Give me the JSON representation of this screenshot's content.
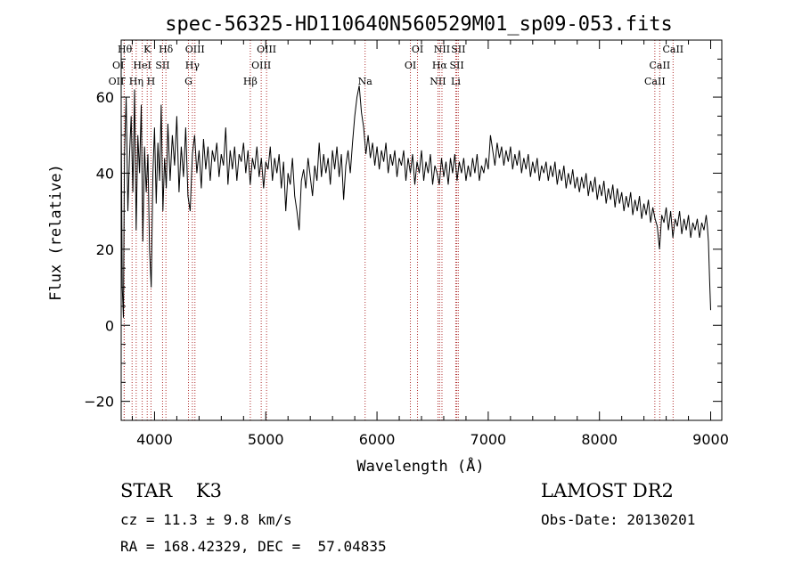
{
  "chart_data": {
    "type": "line",
    "title": "spec-56325-HD110640N560529M01_sp09-053.fits",
    "xlabel": "Wavelength (Å)",
    "ylabel": "Flux (relative)",
    "xlim": [
      3700,
      9100
    ],
    "ylim": [
      -25,
      75
    ],
    "x_ticks": [
      4000,
      5000,
      6000,
      7000,
      8000,
      9000
    ],
    "y_ticks": [
      -20,
      0,
      20,
      40,
      60
    ],
    "grid": false,
    "series": [
      {
        "color": "#000000",
        "points": [
          [
            3700,
            55
          ],
          [
            3710,
            10
          ],
          [
            3720,
            2
          ],
          [
            3730,
            45
          ],
          [
            3745,
            60
          ],
          [
            3760,
            30
          ],
          [
            3775,
            45
          ],
          [
            3790,
            55
          ],
          [
            3805,
            35
          ],
          [
            3820,
            62
          ],
          [
            3835,
            25
          ],
          [
            3850,
            50
          ],
          [
            3865,
            40
          ],
          [
            3880,
            58
          ],
          [
            3895,
            22
          ],
          [
            3910,
            47
          ],
          [
            3925,
            35
          ],
          [
            3940,
            45
          ],
          [
            3955,
            20
          ],
          [
            3970,
            10
          ],
          [
            3985,
            40
          ],
          [
            4000,
            52
          ],
          [
            4015,
            32
          ],
          [
            4030,
            48
          ],
          [
            4045,
            38
          ],
          [
            4060,
            58
          ],
          [
            4075,
            30
          ],
          [
            4090,
            44
          ],
          [
            4105,
            36
          ],
          [
            4120,
            53
          ],
          [
            4140,
            38
          ],
          [
            4160,
            50
          ],
          [
            4180,
            42
          ],
          [
            4200,
            55
          ],
          [
            4220,
            35
          ],
          [
            4240,
            47
          ],
          [
            4260,
            39
          ],
          [
            4280,
            52
          ],
          [
            4300,
            34
          ],
          [
            4320,
            30
          ],
          [
            4340,
            45
          ],
          [
            4360,
            50
          ],
          [
            4380,
            40
          ],
          [
            4400,
            46
          ],
          [
            4420,
            36
          ],
          [
            4440,
            49
          ],
          [
            4460,
            41
          ],
          [
            4480,
            47
          ],
          [
            4500,
            38
          ],
          [
            4520,
            46
          ],
          [
            4540,
            43
          ],
          [
            4560,
            48
          ],
          [
            4580,
            39
          ],
          [
            4600,
            45
          ],
          [
            4620,
            42
          ],
          [
            4640,
            52
          ],
          [
            4660,
            37
          ],
          [
            4680,
            46
          ],
          [
            4700,
            41
          ],
          [
            4720,
            47
          ],
          [
            4740,
            38
          ],
          [
            4760,
            45
          ],
          [
            4780,
            43
          ],
          [
            4800,
            48
          ],
          [
            4820,
            40
          ],
          [
            4840,
            46
          ],
          [
            4860,
            37
          ],
          [
            4880,
            44
          ],
          [
            4900,
            41
          ],
          [
            4920,
            47
          ],
          [
            4940,
            39
          ],
          [
            4960,
            44
          ],
          [
            4980,
            36
          ],
          [
            5000,
            43
          ],
          [
            5020,
            41
          ],
          [
            5040,
            47
          ],
          [
            5060,
            38
          ],
          [
            5080,
            44
          ],
          [
            5100,
            40
          ],
          [
            5120,
            45
          ],
          [
            5140,
            36
          ],
          [
            5160,
            43
          ],
          [
            5180,
            30
          ],
          [
            5200,
            40
          ],
          [
            5220,
            37
          ],
          [
            5240,
            44
          ],
          [
            5260,
            34
          ],
          [
            5280,
            30
          ],
          [
            5300,
            25
          ],
          [
            5320,
            38
          ],
          [
            5340,
            41
          ],
          [
            5360,
            36
          ],
          [
            5380,
            44
          ],
          [
            5400,
            39
          ],
          [
            5420,
            34
          ],
          [
            5440,
            42
          ],
          [
            5460,
            38
          ],
          [
            5480,
            48
          ],
          [
            5500,
            39
          ],
          [
            5520,
            45
          ],
          [
            5540,
            40
          ],
          [
            5560,
            44
          ],
          [
            5580,
            37
          ],
          [
            5600,
            46
          ],
          [
            5620,
            41
          ],
          [
            5640,
            47
          ],
          [
            5660,
            39
          ],
          [
            5680,
            45
          ],
          [
            5700,
            33
          ],
          [
            5720,
            42
          ],
          [
            5740,
            46
          ],
          [
            5760,
            40
          ],
          [
            5780,
            48
          ],
          [
            5800,
            55
          ],
          [
            5820,
            60
          ],
          [
            5840,
            63
          ],
          [
            5860,
            56
          ],
          [
            5880,
            52
          ],
          [
            5900,
            45
          ],
          [
            5920,
            50
          ],
          [
            5940,
            44
          ],
          [
            5960,
            48
          ],
          [
            5980,
            42
          ],
          [
            6000,
            47
          ],
          [
            6020,
            41
          ],
          [
            6040,
            46
          ],
          [
            6060,
            43
          ],
          [
            6080,
            48
          ],
          [
            6100,
            40
          ],
          [
            6120,
            45
          ],
          [
            6140,
            42
          ],
          [
            6160,
            46
          ],
          [
            6180,
            39
          ],
          [
            6200,
            44
          ],
          [
            6220,
            42
          ],
          [
            6240,
            46
          ],
          [
            6260,
            38
          ],
          [
            6280,
            44
          ],
          [
            6300,
            40
          ],
          [
            6320,
            45
          ],
          [
            6340,
            37
          ],
          [
            6360,
            43
          ],
          [
            6380,
            40
          ],
          [
            6400,
            46
          ],
          [
            6420,
            38
          ],
          [
            6440,
            43
          ],
          [
            6460,
            40
          ],
          [
            6480,
            45
          ],
          [
            6500,
            37
          ],
          [
            6520,
            42
          ],
          [
            6540,
            40
          ],
          [
            6560,
            37
          ],
          [
            6580,
            44
          ],
          [
            6600,
            39
          ],
          [
            6620,
            43
          ],
          [
            6640,
            37
          ],
          [
            6660,
            44
          ],
          [
            6680,
            40
          ],
          [
            6700,
            45
          ],
          [
            6720,
            38
          ],
          [
            6740,
            43
          ],
          [
            6760,
            40
          ],
          [
            6780,
            44
          ],
          [
            6800,
            38
          ],
          [
            6820,
            42
          ],
          [
            6840,
            39
          ],
          [
            6860,
            44
          ],
          [
            6880,
            40
          ],
          [
            6900,
            45
          ],
          [
            6920,
            38
          ],
          [
            6940,
            42
          ],
          [
            6960,
            40
          ],
          [
            6980,
            44
          ],
          [
            7000,
            41
          ],
          [
            7020,
            50
          ],
          [
            7040,
            46
          ],
          [
            7060,
            42
          ],
          [
            7080,
            48
          ],
          [
            7100,
            44
          ],
          [
            7120,
            47
          ],
          [
            7140,
            42
          ],
          [
            7160,
            46
          ],
          [
            7180,
            43
          ],
          [
            7200,
            47
          ],
          [
            7220,
            41
          ],
          [
            7240,
            45
          ],
          [
            7260,
            42
          ],
          [
            7280,
            46
          ],
          [
            7300,
            40
          ],
          [
            7320,
            44
          ],
          [
            7340,
            41
          ],
          [
            7360,
            45
          ],
          [
            7380,
            39
          ],
          [
            7400,
            43
          ],
          [
            7420,
            40
          ],
          [
            7440,
            44
          ],
          [
            7460,
            38
          ],
          [
            7480,
            42
          ],
          [
            7500,
            40
          ],
          [
            7520,
            43
          ],
          [
            7540,
            38
          ],
          [
            7560,
            42
          ],
          [
            7580,
            39
          ],
          [
            7600,
            43
          ],
          [
            7620,
            37
          ],
          [
            7640,
            41
          ],
          [
            7660,
            38
          ],
          [
            7680,
            42
          ],
          [
            7700,
            36
          ],
          [
            7720,
            40
          ],
          [
            7740,
            37
          ],
          [
            7760,
            41
          ],
          [
            7780,
            36
          ],
          [
            7800,
            39
          ],
          [
            7820,
            35
          ],
          [
            7840,
            39
          ],
          [
            7860,
            36
          ],
          [
            7880,
            40
          ],
          [
            7900,
            34
          ],
          [
            7920,
            38
          ],
          [
            7940,
            35
          ],
          [
            7960,
            39
          ],
          [
            7980,
            33
          ],
          [
            8000,
            37
          ],
          [
            8020,
            34
          ],
          [
            8040,
            38
          ],
          [
            8060,
            32
          ],
          [
            8080,
            36
          ],
          [
            8100,
            33
          ],
          [
            8120,
            37
          ],
          [
            8140,
            31
          ],
          [
            8160,
            36
          ],
          [
            8180,
            32
          ],
          [
            8200,
            35
          ],
          [
            8220,
            30
          ],
          [
            8240,
            34
          ],
          [
            8260,
            31
          ],
          [
            8280,
            35
          ],
          [
            8300,
            29
          ],
          [
            8320,
            33
          ],
          [
            8340,
            30
          ],
          [
            8360,
            34
          ],
          [
            8380,
            28
          ],
          [
            8400,
            32
          ],
          [
            8420,
            29
          ],
          [
            8440,
            33
          ],
          [
            8460,
            27
          ],
          [
            8480,
            31
          ],
          [
            8500,
            28
          ],
          [
            8520,
            26
          ],
          [
            8540,
            20
          ],
          [
            8560,
            29
          ],
          [
            8580,
            27
          ],
          [
            8600,
            31
          ],
          [
            8620,
            25
          ],
          [
            8640,
            30
          ],
          [
            8660,
            23
          ],
          [
            8680,
            28
          ],
          [
            8700,
            26
          ],
          [
            8720,
            30
          ],
          [
            8740,
            24
          ],
          [
            8760,
            28
          ],
          [
            8780,
            25
          ],
          [
            8800,
            29
          ],
          [
            8820,
            23
          ],
          [
            8840,
            27
          ],
          [
            8860,
            25
          ],
          [
            8880,
            28
          ],
          [
            8900,
            23
          ],
          [
            8920,
            27
          ],
          [
            8940,
            25
          ],
          [
            8960,
            29
          ],
          [
            8970,
            26
          ],
          [
            8980,
            22
          ],
          [
            8990,
            12
          ],
          [
            9000,
            4
          ]
        ]
      }
    ],
    "line_labels": [
      {
        "label": "Hθ",
        "x": 3798,
        "row": 1,
        "anchor": "end"
      },
      {
        "label": "K",
        "x": 3934,
        "row": 1
      },
      {
        "label": "Hδ",
        "x": 4102,
        "row": 1
      },
      {
        "label": "OI",
        "x": 3727,
        "row": 2,
        "anchor": "end"
      },
      {
        "label": "HeI",
        "x": 3889,
        "row": 2
      },
      {
        "label": "SII",
        "x": 4072,
        "row": 2
      },
      {
        "label": "OII",
        "x": 3727,
        "row": 3,
        "anchor": "end"
      },
      {
        "label": "Hη",
        "x": 3835,
        "row": 3
      },
      {
        "label": "H",
        "x": 3968,
        "row": 3
      },
      {
        "label": "OIII",
        "x": 4363,
        "row": 1
      },
      {
        "label": "Hγ",
        "x": 4340,
        "row": 2
      },
      {
        "label": "G",
        "x": 4305,
        "row": 3
      },
      {
        "label": "OIII",
        "x": 5007,
        "row": 1
      },
      {
        "label": "OIII",
        "x": 4959,
        "row": 2
      },
      {
        "label": "Hβ",
        "x": 4861,
        "row": 3
      },
      {
        "label": "Na",
        "x": 5893,
        "row": 3
      },
      {
        "label": "OI",
        "x": 6364,
        "row": 1
      },
      {
        "label": "OI",
        "x": 6300,
        "row": 2
      },
      {
        "label": "NII",
        "x": 6584,
        "row": 1
      },
      {
        "label": "Hα",
        "x": 6563,
        "row": 2
      },
      {
        "label": "NII",
        "x": 6548,
        "row": 3
      },
      {
        "label": "SII",
        "x": 6731,
        "row": 1
      },
      {
        "label": "SII",
        "x": 6717,
        "row": 2
      },
      {
        "label": "Li",
        "x": 6708,
        "row": 3
      },
      {
        "label": "CaII",
        "x": 8662,
        "row": 1
      },
      {
        "label": "CaII",
        "x": 8542,
        "row": 2
      },
      {
        "label": "CaII",
        "x": 8498,
        "row": 3
      }
    ]
  },
  "info": {
    "class": "STAR    K3",
    "cz": "cz = 11.3 ± 9.8 km/s",
    "radec": "RA = 168.42329, DEC =  57.04835",
    "survey": "LAMOST DR2",
    "obs_date": "Obs-Date: 20130201"
  },
  "colors": {
    "spectrum": "#000000",
    "emission_line_marker": "#b03030"
  }
}
